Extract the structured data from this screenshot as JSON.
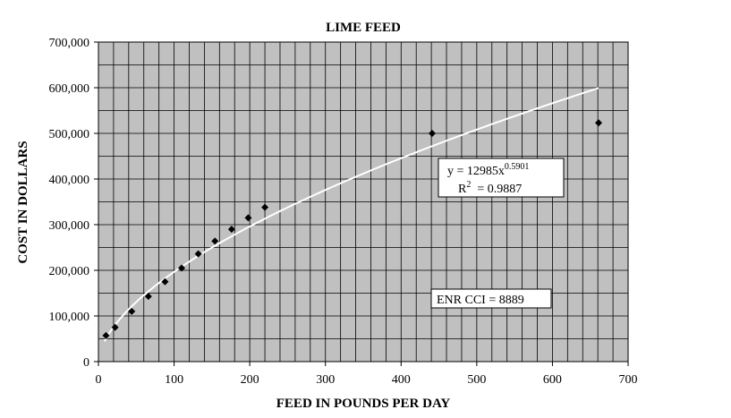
{
  "chart_data": {
    "type": "scatter",
    "title": "LIME FEED",
    "xlabel": "FEED IN POUNDS PER DAY",
    "ylabel": "COST IN DOLLARS",
    "xlim": [
      0,
      700
    ],
    "ylim": [
      0,
      700000
    ],
    "x_ticks": [
      "0",
      "100",
      "200",
      "300",
      "400",
      "500",
      "600",
      "700"
    ],
    "y_ticks": [
      "0",
      "100,000",
      "200,000",
      "300,000",
      "400,000",
      "500,000",
      "600,000",
      "700,000"
    ],
    "grid": true,
    "background": "#c0c0c0",
    "points": [
      {
        "x": 10,
        "y": 57000
      },
      {
        "x": 22,
        "y": 75000
      },
      {
        "x": 44,
        "y": 110000
      },
      {
        "x": 66,
        "y": 143000
      },
      {
        "x": 88,
        "y": 175000
      },
      {
        "x": 110,
        "y": 205000
      },
      {
        "x": 132,
        "y": 236000
      },
      {
        "x": 154,
        "y": 264000
      },
      {
        "x": 176,
        "y": 290000
      },
      {
        "x": 198,
        "y": 315000
      },
      {
        "x": 220,
        "y": 338000
      },
      {
        "x": 441,
        "y": 500000
      },
      {
        "x": 661,
        "y": 523000
      }
    ],
    "trendline": {
      "type": "power",
      "coefficient": 12985,
      "exponent": 0.5901,
      "x_range": [
        8,
        661
      ],
      "color": "#ffffff"
    },
    "annotations": {
      "equation_main": "y = 12985x",
      "equation_exp": "0.5901",
      "r2_label": "R",
      "r2_exp": "2",
      "r2_value": "  = 0.9887",
      "enr": "ENR CCI = 8889"
    }
  }
}
